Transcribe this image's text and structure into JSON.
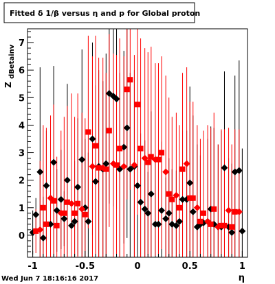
{
  "chart_data": {
    "type": "scatter",
    "title": "Fitted δ 1/β versus η and p for Global proton",
    "xlabel": "η",
    "ylabel": "Z",
    "ylabel_sub": "dBetainv",
    "xlim": [
      -1.05,
      1.05
    ],
    "ylim": [
      -0.8,
      7.5
    ],
    "xticks": [
      "-1",
      "-0.5",
      "0",
      "0.5",
      "1"
    ],
    "yticks": [
      "0",
      "1",
      "2",
      "3",
      "4",
      "5",
      "6",
      "7"
    ],
    "grid": false,
    "legend": "none",
    "footer": "Wed Jun  7 18:16:16 2017",
    "series": [
      {
        "color": "#000000",
        "marker": "diamond",
        "points": [
          [
            -1.0,
            0.1,
            0.8
          ],
          [
            -0.97,
            0.75,
            0.6
          ],
          [
            -0.93,
            2.3,
            3.8
          ],
          [
            -0.9,
            -0.1,
            1.5
          ],
          [
            -0.87,
            1.8,
            2.0
          ],
          [
            -0.83,
            0.4,
            2.2
          ],
          [
            -0.8,
            2.65,
            3.5
          ],
          [
            -0.77,
            0.9,
            1.5
          ],
          [
            -0.73,
            1.3,
            1.8
          ],
          [
            -0.7,
            0.6,
            1.0
          ],
          [
            -0.67,
            2.0,
            3.5
          ],
          [
            -0.63,
            0.35,
            1.2
          ],
          [
            -0.6,
            0.5,
            2.2
          ],
          [
            -0.57,
            1.75,
            2.5
          ],
          [
            -0.53,
            2.75,
            4.0
          ],
          [
            -0.5,
            1.0,
            2.5
          ],
          [
            -0.47,
            0.5,
            2.5
          ],
          [
            -0.43,
            3.5,
            3.5
          ],
          [
            -0.4,
            1.95,
            3.5
          ],
          [
            -0.37,
            2.5,
            3.5
          ],
          [
            -0.33,
            2.4,
            3.2
          ],
          [
            -0.3,
            2.6,
            4.0
          ],
          [
            -0.27,
            5.15,
            4.0
          ],
          [
            -0.23,
            5.05,
            4.0
          ],
          [
            -0.2,
            4.95,
            4.0
          ],
          [
            -0.17,
            2.4,
            3.5
          ],
          [
            -0.13,
            3.2,
            3.5
          ],
          [
            -0.1,
            3.9,
            4.0
          ],
          [
            -0.07,
            2.4,
            3.5
          ],
          [
            -0.03,
            2.5,
            3.5
          ],
          [
            0.0,
            1.8,
            3.5
          ],
          [
            0.03,
            1.2,
            2.5
          ],
          [
            0.07,
            0.95,
            2.5
          ],
          [
            0.1,
            0.8,
            1.5
          ],
          [
            0.13,
            1.5,
            3.0
          ],
          [
            0.17,
            0.4,
            2.5
          ],
          [
            0.2,
            0.4,
            2.5
          ],
          [
            0.23,
            0.9,
            2.5
          ],
          [
            0.27,
            0.6,
            1.5
          ],
          [
            0.3,
            0.8,
            2.0
          ],
          [
            0.33,
            0.4,
            2.0
          ],
          [
            0.37,
            0.35,
            2.0
          ],
          [
            0.4,
            0.5,
            2.0
          ],
          [
            0.43,
            1.3,
            2.5
          ],
          [
            0.47,
            1.3,
            2.5
          ],
          [
            0.5,
            1.9,
            3.5
          ],
          [
            0.53,
            0.85,
            3.5
          ],
          [
            0.57,
            0.3,
            3.0
          ],
          [
            0.6,
            0.4,
            2.5
          ],
          [
            0.63,
            0.45,
            3.0
          ],
          [
            0.67,
            0.5,
            3.0
          ],
          [
            0.7,
            0.95,
            3.0
          ],
          [
            0.73,
            0.4,
            3.5
          ],
          [
            0.77,
            0.3,
            3.0
          ],
          [
            0.8,
            0.3,
            3.5
          ],
          [
            0.83,
            2.45,
            3.5
          ],
          [
            0.87,
            0.3,
            2.5
          ],
          [
            0.9,
            0.1,
            2.5
          ],
          [
            0.93,
            2.3,
            3.5
          ],
          [
            0.97,
            2.35,
            4.0
          ],
          [
            1.0,
            0.15,
            3.0
          ]
        ]
      },
      {
        "color": "#ff0000",
        "marker": "mixed",
        "points": [
          [
            -0.97,
            0.15,
            0.8
          ],
          [
            -0.93,
            0.2,
            2.5
          ],
          [
            -0.9,
            1.0,
            3.0
          ],
          [
            -0.87,
            0.4,
            3.5
          ],
          [
            -0.83,
            1.35,
            3.0
          ],
          [
            -0.8,
            1.25,
            3.5
          ],
          [
            -0.77,
            0.35,
            2.5
          ],
          [
            -0.73,
            0.8,
            3.0
          ],
          [
            -0.7,
            0.8,
            3.5
          ],
          [
            -0.67,
            1.2,
            3.5
          ],
          [
            -0.63,
            1.15,
            4.0
          ],
          [
            -0.6,
            0.8,
            3.5
          ],
          [
            -0.57,
            1.15,
            4.0
          ],
          [
            -0.53,
            0.95,
            3.5
          ],
          [
            -0.5,
            0.75,
            3.5
          ],
          [
            -0.47,
            3.75,
            3.5
          ],
          [
            -0.43,
            2.5,
            4.0
          ],
          [
            -0.4,
            3.25,
            4.0
          ],
          [
            -0.37,
            2.45,
            4.0
          ],
          [
            -0.33,
            2.45,
            4.0
          ],
          [
            -0.3,
            2.4,
            3.5
          ],
          [
            -0.27,
            3.8,
            3.5
          ],
          [
            -0.23,
            2.6,
            4.0
          ],
          [
            -0.2,
            2.55,
            4.0
          ],
          [
            -0.17,
            3.15,
            4.0
          ],
          [
            -0.13,
            2.5,
            4.0
          ],
          [
            -0.1,
            5.3,
            4.0
          ],
          [
            -0.07,
            5.65,
            4.0
          ],
          [
            -0.03,
            2.55,
            4.0
          ],
          [
            0.0,
            4.75,
            4.0
          ],
          [
            0.03,
            3.15,
            4.0
          ],
          [
            0.07,
            2.8,
            4.0
          ],
          [
            0.1,
            2.65,
            4.0
          ],
          [
            0.13,
            2.85,
            4.0
          ],
          [
            0.17,
            2.75,
            3.5
          ],
          [
            0.2,
            2.75,
            3.5
          ],
          [
            0.23,
            3.0,
            3.5
          ],
          [
            0.27,
            2.3,
            3.5
          ],
          [
            0.3,
            1.5,
            3.5
          ],
          [
            0.33,
            1.3,
            3.0
          ],
          [
            0.37,
            1.45,
            3.0
          ],
          [
            0.4,
            1.0,
            3.0
          ],
          [
            0.43,
            2.4,
            3.5
          ],
          [
            0.47,
            2.6,
            3.5
          ],
          [
            0.5,
            1.35,
            3.5
          ],
          [
            0.53,
            1.35,
            3.5
          ],
          [
            0.57,
            1.0,
            3.0
          ],
          [
            0.6,
            0.5,
            3.0
          ],
          [
            0.63,
            0.8,
            3.0
          ],
          [
            0.67,
            0.5,
            3.5
          ],
          [
            0.7,
            0.4,
            3.5
          ],
          [
            0.73,
            0.95,
            3.5
          ],
          [
            0.77,
            0.3,
            3.0
          ],
          [
            0.8,
            0.35,
            3.5
          ],
          [
            0.83,
            0.35,
            3.5
          ],
          [
            0.87,
            0.9,
            3.0
          ],
          [
            0.9,
            0.3,
            3.0
          ],
          [
            0.93,
            0.85,
            3.0
          ],
          [
            0.97,
            0.85,
            3.0
          ]
        ]
      }
    ]
  }
}
